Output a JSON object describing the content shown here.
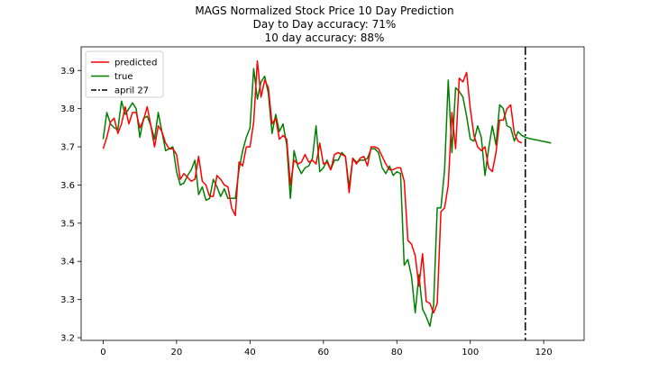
{
  "chart_data": {
    "type": "line",
    "title_lines": [
      "MAGS Normalized Stock Price 10 Day Prediction",
      "Day to Day accuracy: 71%",
      "10 day accuracy: 88%"
    ],
    "xlabel": "",
    "ylabel": "",
    "xlim": [
      -6,
      131
    ],
    "ylim": [
      3.193,
      3.962
    ],
    "xticks": [
      0,
      20,
      40,
      60,
      80,
      100,
      120
    ],
    "yticks": [
      3.2,
      3.3,
      3.4,
      3.5,
      3.6,
      3.7,
      3.8,
      3.9
    ],
    "grid": false,
    "legend_position": "upper-left",
    "series": [
      {
        "name": "predicted",
        "color": "#ff0000",
        "x_start": 0,
        "values": [
          3.695,
          3.725,
          3.765,
          3.775,
          3.735,
          3.76,
          3.805,
          3.76,
          3.79,
          3.79,
          3.75,
          3.77,
          3.805,
          3.755,
          3.7,
          3.755,
          3.74,
          3.71,
          3.695,
          3.695,
          3.68,
          3.615,
          3.63,
          3.62,
          3.61,
          3.615,
          3.675,
          3.61,
          3.6,
          3.57,
          3.57,
          3.625,
          3.615,
          3.6,
          3.595,
          3.54,
          3.52,
          3.66,
          3.65,
          3.7,
          3.7,
          3.765,
          3.925,
          3.83,
          3.875,
          3.855,
          3.76,
          3.775,
          3.72,
          3.73,
          3.72,
          3.6,
          3.665,
          3.655,
          3.66,
          3.68,
          3.66,
          3.665,
          3.655,
          3.71,
          3.655,
          3.66,
          3.64,
          3.68,
          3.685,
          3.68,
          3.675,
          3.58,
          3.67,
          3.655,
          3.67,
          3.675,
          3.65,
          3.7,
          3.7,
          3.695,
          3.675,
          3.655,
          3.64,
          3.64,
          3.645,
          3.645,
          3.61,
          3.455,
          3.445,
          3.415,
          3.335,
          3.42,
          3.295,
          3.29,
          3.265,
          3.29,
          3.53,
          3.54,
          3.6,
          3.79,
          3.695,
          3.88,
          3.87,
          3.895,
          3.8,
          3.73,
          3.7,
          3.69,
          3.7,
          3.645,
          3.635,
          3.685,
          3.77,
          3.77,
          3.8,
          3.81,
          3.735,
          3.715,
          3.71
        ]
      },
      {
        "name": "true",
        "color": "#008000",
        "x_start": 0,
        "values": [
          3.72,
          3.79,
          3.76,
          3.75,
          3.745,
          3.82,
          3.785,
          3.8,
          3.815,
          3.8,
          3.725,
          3.775,
          3.78,
          3.755,
          3.72,
          3.79,
          3.74,
          3.69,
          3.695,
          3.7,
          3.635,
          3.6,
          3.605,
          3.625,
          3.64,
          3.665,
          3.575,
          3.595,
          3.56,
          3.565,
          3.615,
          3.595,
          3.57,
          3.59,
          3.565,
          3.565,
          3.565,
          3.64,
          3.69,
          3.725,
          3.75,
          3.905,
          3.825,
          3.87,
          3.885,
          3.84,
          3.735,
          3.785,
          3.74,
          3.76,
          3.705,
          3.565,
          3.69,
          3.65,
          3.63,
          3.645,
          3.65,
          3.67,
          3.755,
          3.635,
          3.645,
          3.665,
          3.64,
          3.665,
          3.665,
          3.685,
          3.675,
          3.595,
          3.67,
          3.66,
          3.665,
          3.665,
          3.67,
          3.695,
          3.695,
          3.685,
          3.645,
          3.63,
          3.65,
          3.625,
          3.635,
          3.63,
          3.39,
          3.405,
          3.36,
          3.265,
          3.365,
          3.275,
          3.255,
          3.23,
          3.285,
          3.54,
          3.54,
          3.64,
          3.875,
          3.685,
          3.855,
          3.845,
          3.83,
          3.78,
          3.72,
          3.715,
          3.755,
          3.725,
          3.625,
          3.695,
          3.755,
          3.705,
          3.81,
          3.8,
          3.755,
          3.75,
          3.715,
          3.74,
          3.73,
          3.725,
          3.722,
          3.72,
          3.718,
          3.716,
          3.714,
          3.712,
          3.71
        ]
      }
    ],
    "markers": [
      {
        "name": "april 27",
        "x": 115,
        "style": "dash-dot",
        "color": "#000000"
      }
    ]
  }
}
